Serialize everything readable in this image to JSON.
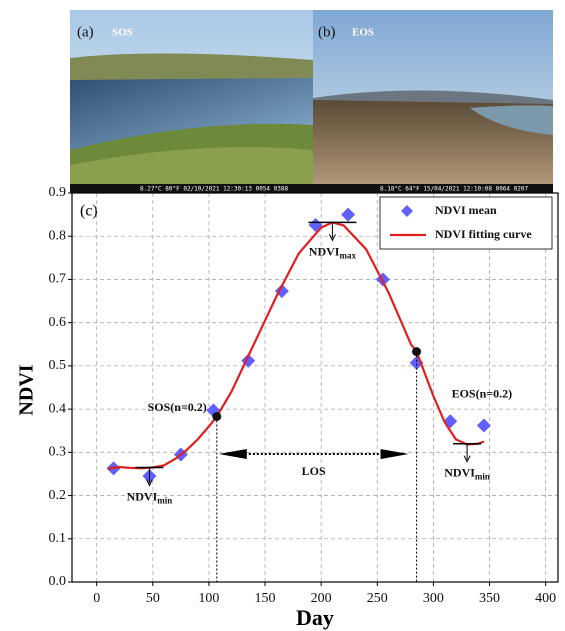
{
  "photos": [
    {
      "label": "(a)",
      "title": "SOS",
      "stamp": "8.27°C 80°F 02/10/2021 12:30:13 0054 0388"
    },
    {
      "label": "(b)",
      "title": "EOS",
      "stamp": "8.18°C 64°F 15/04/2021 12:10:08 0064 0207"
    }
  ],
  "chart_data": {
    "type": "scatter",
    "panel_label": "(c)",
    "x_label": "Day",
    "y_label": "NDVI",
    "xlim": [
      -22,
      411
    ],
    "ylim": [
      0,
      0.9
    ],
    "xticks": [
      0,
      50,
      100,
      150,
      200,
      250,
      300,
      350,
      400
    ],
    "yticks": [
      {
        "value": 0,
        "label": "0.0"
      },
      0.1,
      0.2,
      0.3,
      0.4,
      0.5,
      0.6,
      0.7,
      0.8,
      0.9
    ],
    "grid": true,
    "legend": "upper right",
    "series": [
      {
        "name": "NDVI mean",
        "type": "scatter",
        "color": "#6060ff",
        "x": [
          15,
          47,
          75,
          104,
          135,
          165,
          195,
          224,
          255,
          285,
          315,
          345
        ],
        "values": [
          0.263,
          0.245,
          0.295,
          0.397,
          0.512,
          0.673,
          0.826,
          0.85,
          0.7,
          0.507,
          0.372,
          0.362
        ]
      },
      {
        "name": "NDVI fitting curve",
        "type": "line",
        "color": "#e02020",
        "x": [
          10,
          20,
          30,
          40,
          50,
          60,
          70,
          80,
          90,
          100,
          107,
          120,
          140,
          160,
          180,
          200,
          210,
          220,
          240,
          260,
          280,
          285,
          300,
          310,
          320,
          330,
          340,
          345
        ],
        "values": [
          0.262,
          0.266,
          0.264,
          0.263,
          0.265,
          0.27,
          0.285,
          0.305,
          0.33,
          0.36,
          0.383,
          0.44,
          0.55,
          0.66,
          0.76,
          0.82,
          0.832,
          0.825,
          0.77,
          0.67,
          0.55,
          0.533,
          0.43,
          0.37,
          0.33,
          0.318,
          0.32,
          0.325
        ]
      }
    ],
    "points": [
      {
        "label": "SOS(n=0.2)",
        "x": 107,
        "y": 0.383
      },
      {
        "label": "EOS(n=0.2)",
        "x": 285,
        "y": 0.533
      }
    ],
    "levels": [
      {
        "text": "NDVI",
        "sub": "min",
        "x": 47,
        "y": 0.265
      },
      {
        "text": "NDVI",
        "sub": "max",
        "x": 210,
        "y": 0.832
      },
      {
        "text": "NDVI",
        "sub": "min",
        "x": 330,
        "y": 0.32
      }
    ],
    "los": {
      "label": "LOS",
      "start": 107,
      "end": 285
    }
  }
}
